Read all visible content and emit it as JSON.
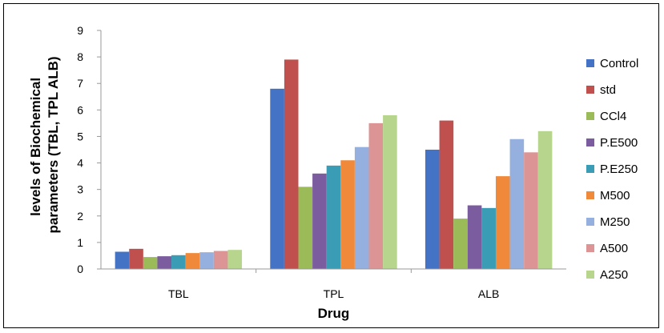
{
  "chart_data": {
    "type": "bar",
    "title": "",
    "xlabel": "Drug",
    "ylabel": "levels of Biochemical parameters (TBL, TPL ALB)",
    "ylabel_lines": [
      "levels of Biochemical",
      "parameters (TBL, TPL ALB)"
    ],
    "ylim": [
      0,
      9
    ],
    "yticks": [
      "0",
      "1",
      "2",
      "3",
      "4",
      "5",
      "6",
      "7",
      "8",
      "9"
    ],
    "grid": false,
    "legend_position": "right",
    "categories": [
      "TBL",
      "TPL",
      "ALB"
    ],
    "series": [
      {
        "name": "Control",
        "color": "#4472C4",
        "values": [
          0.65,
          6.8,
          4.5
        ]
      },
      {
        "name": "std",
        "color": "#C0504D",
        "values": [
          0.76,
          7.9,
          5.6
        ]
      },
      {
        "name": "CCl4",
        "color": "#9BBB59",
        "values": [
          0.45,
          3.1,
          1.9
        ]
      },
      {
        "name": "P.E500",
        "color": "#7B5C9E",
        "values": [
          0.48,
          3.6,
          2.4
        ]
      },
      {
        "name": "P.E250",
        "color": "#3A9CB5",
        "values": [
          0.52,
          3.9,
          2.3
        ]
      },
      {
        "name": "M500",
        "color": "#F08A3A",
        "values": [
          0.6,
          4.1,
          3.5
        ]
      },
      {
        "name": "M250",
        "color": "#95B0DE",
        "values": [
          0.63,
          4.6,
          4.9
        ]
      },
      {
        "name": "A500",
        "color": "#DC9494",
        "values": [
          0.68,
          5.5,
          4.4
        ]
      },
      {
        "name": "A250",
        "color": "#B8D58E",
        "values": [
          0.72,
          5.8,
          5.2
        ]
      }
    ]
  }
}
